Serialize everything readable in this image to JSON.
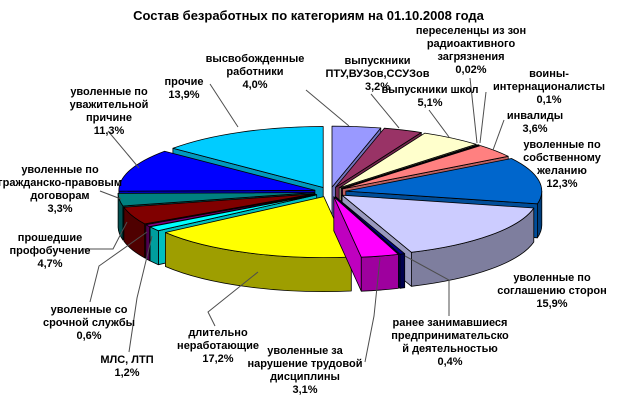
{
  "chart_data": {
    "type": "pie",
    "style": "3d-exploded",
    "title": "Состав безработных по категориям на 01.10.2008 года",
    "legend": "none",
    "background": "#FFFFFF",
    "data_labels": "category-name-and-percent",
    "slices": [
      {
        "label": "высвобожденные работники",
        "pct": "4,0%",
        "value": 4.0,
        "color": "#9999FF"
      },
      {
        "label": "выпускники ПТУ,ВУЗов,ССУЗов",
        "pct": "3,2%",
        "value": 3.2,
        "color": "#993366"
      },
      {
        "label": "выпускники школ",
        "pct": "5,1%",
        "value": 5.1,
        "color": "#FFFFCC"
      },
      {
        "label": "переселенцы из зон радиоактивного загрязнения",
        "pct": "0,02%",
        "value": 0.02,
        "color": "#CCFFFF"
      },
      {
        "label": "воины-интернационалисты",
        "pct": "0,1%",
        "value": 0.1,
        "color": "#660066"
      },
      {
        "label": "инвалиды",
        "pct": "3,6%",
        "value": 3.6,
        "color": "#FF8080"
      },
      {
        "label": "уволенные по собственному желанию",
        "pct": "12,3%",
        "value": 12.3,
        "color": "#0066CC"
      },
      {
        "label": "уволенные по соглашению сторон",
        "pct": "15,9%",
        "value": 15.9,
        "color": "#CCCCFF"
      },
      {
        "label": "ранее занимавшиеся предпринимательско й деятельностью",
        "pct": "0,4%",
        "value": 0.4,
        "color": "#000080"
      },
      {
        "label": "уволенные за нарушение трудовой дисциплины",
        "pct": "3,1%",
        "value": 3.1,
        "color": "#FF00FF"
      },
      {
        "label": "длительно неработающие",
        "pct": "17,2%",
        "value": 17.2,
        "color": "#FFFF00"
      },
      {
        "label": "МЛС, ЛТП",
        "pct": "1,2%",
        "value": 1.2,
        "color": "#00FFFF"
      },
      {
        "label": "уволенные со срочной службы",
        "pct": "0,6%",
        "value": 0.6,
        "color": "#800080"
      },
      {
        "label": "прошедшие профобучение",
        "pct": "4,7%",
        "value": 4.7,
        "color": "#800000"
      },
      {
        "label": "уволенные по гражданско-правовым договорам",
        "pct": "3,3%",
        "value": 3.3,
        "color": "#008080"
      },
      {
        "label": "уволенные по уважительной причине",
        "pct": "11,3%",
        "value": 11.3,
        "color": "#0000FF"
      },
      {
        "label": "прочие",
        "pct": "13,9%",
        "value": 13.9,
        "color": "#00CCFF"
      }
    ]
  }
}
